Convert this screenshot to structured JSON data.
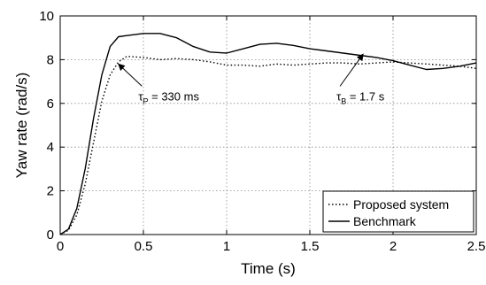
{
  "chart_data": {
    "type": "line",
    "title": "",
    "xlabel": "Time (s)",
    "ylabel": "Yaw rate (rad/s)",
    "xlim": [
      0,
      2.5
    ],
    "ylim": [
      0,
      10
    ],
    "xticks": [
      0,
      0.5,
      1,
      1.5,
      2,
      2.5
    ],
    "xtick_labels": [
      "0",
      "0.5",
      "1",
      "1.5",
      "2",
      "2.5"
    ],
    "yticks": [
      0,
      2,
      4,
      6,
      8,
      10
    ],
    "ytick_labels": [
      "0",
      "2",
      "4",
      "6",
      "8",
      "10"
    ],
    "grid": true,
    "legend_position": "bottom-right",
    "series": [
      {
        "name": "Proposed system",
        "style": "dotted",
        "x": [
          0,
          0.05,
          0.1,
          0.15,
          0.2,
          0.25,
          0.3,
          0.35,
          0.4,
          0.5,
          0.6,
          0.7,
          0.8,
          0.9,
          1.0,
          1.1,
          1.2,
          1.3,
          1.4,
          1.5,
          1.6,
          1.7,
          1.8,
          1.9,
          2.0,
          2.1,
          2.2,
          2.3,
          2.4,
          2.5
        ],
        "y": [
          0,
          0.2,
          0.9,
          2.3,
          4.2,
          6.1,
          7.3,
          7.9,
          8.15,
          8.1,
          8.0,
          8.05,
          8.0,
          7.9,
          7.75,
          7.75,
          7.7,
          7.8,
          7.75,
          7.8,
          7.85,
          7.85,
          7.8,
          7.85,
          7.9,
          7.85,
          7.8,
          7.75,
          7.7,
          7.6
        ]
      },
      {
        "name": "Benchmark",
        "style": "solid",
        "x": [
          0,
          0.05,
          0.1,
          0.15,
          0.2,
          0.25,
          0.3,
          0.35,
          0.4,
          0.5,
          0.6,
          0.7,
          0.8,
          0.9,
          1.0,
          1.1,
          1.2,
          1.3,
          1.4,
          1.5,
          1.6,
          1.7,
          1.8,
          1.9,
          2.0,
          2.1,
          2.2,
          2.3,
          2.4,
          2.5
        ],
        "y": [
          0,
          0.25,
          1.2,
          3.0,
          5.3,
          7.3,
          8.6,
          9.05,
          9.1,
          9.2,
          9.2,
          9.0,
          8.6,
          8.35,
          8.3,
          8.5,
          8.7,
          8.75,
          8.65,
          8.5,
          8.4,
          8.3,
          8.2,
          8.1,
          7.95,
          7.75,
          7.55,
          7.6,
          7.7,
          7.85
        ]
      }
    ],
    "annotations": [
      {
        "symbol": "τ",
        "sub": "P",
        "text": " = 330 ms",
        "arrow_to": [
          0.35,
          7.8
        ],
        "label_at": [
          0.47,
          6.3
        ]
      },
      {
        "symbol": "τ",
        "sub": "B",
        "text": " = 1.7 s",
        "arrow_to": [
          1.82,
          8.25
        ],
        "label_at": [
          1.66,
          6.3
        ]
      }
    ]
  }
}
